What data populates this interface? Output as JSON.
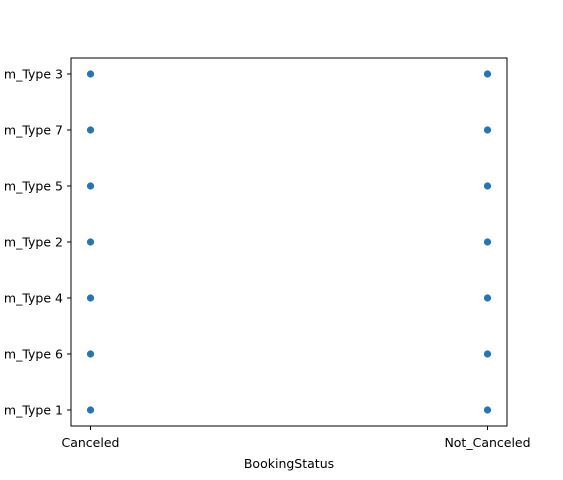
{
  "chart_data": {
    "type": "scatter",
    "title": "",
    "xlabel": "BookingStatus",
    "ylabel": "",
    "x_categories": [
      "Canceled",
      "Not_Canceled"
    ],
    "y_categories": [
      "m_Type 1",
      "m_Type 6",
      "m_Type 4",
      "m_Type 2",
      "m_Type 5",
      "m_Type 7",
      "m_Type 3"
    ],
    "points": [
      {
        "x": "Canceled",
        "y": "m_Type 3"
      },
      {
        "x": "Canceled",
        "y": "m_Type 7"
      },
      {
        "x": "Canceled",
        "y": "m_Type 5"
      },
      {
        "x": "Canceled",
        "y": "m_Type 2"
      },
      {
        "x": "Canceled",
        "y": "m_Type 4"
      },
      {
        "x": "Canceled",
        "y": "m_Type 6"
      },
      {
        "x": "Canceled",
        "y": "m_Type 1"
      },
      {
        "x": "Not_Canceled",
        "y": "m_Type 3"
      },
      {
        "x": "Not_Canceled",
        "y": "m_Type 7"
      },
      {
        "x": "Not_Canceled",
        "y": "m_Type 5"
      },
      {
        "x": "Not_Canceled",
        "y": "m_Type 2"
      },
      {
        "x": "Not_Canceled",
        "y": "m_Type 4"
      },
      {
        "x": "Not_Canceled",
        "y": "m_Type 6"
      },
      {
        "x": "Not_Canceled",
        "y": "m_Type 1"
      }
    ],
    "grid": false,
    "legend": "none",
    "marker_color": "#1f77b4"
  }
}
